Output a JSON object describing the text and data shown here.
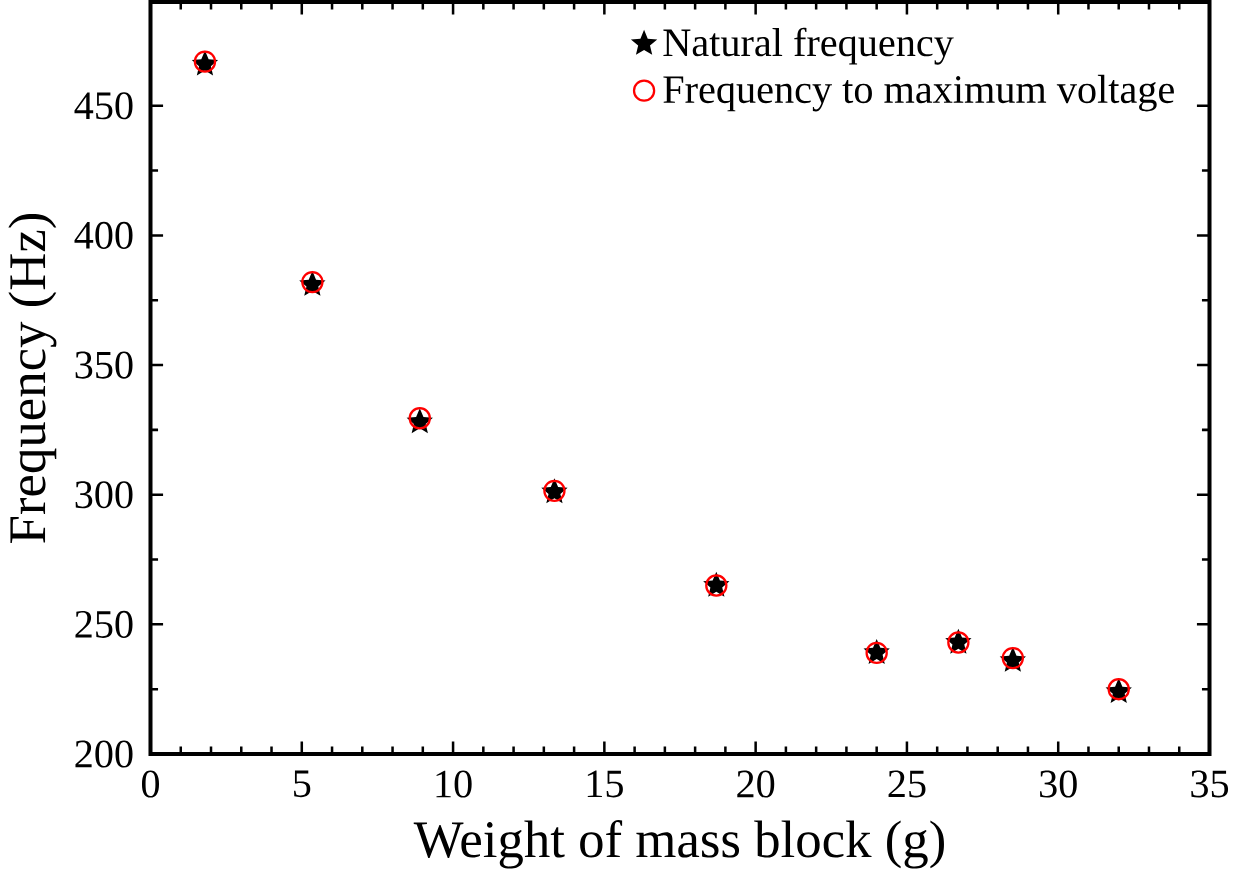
{
  "chart_data": {
    "type": "scatter",
    "xlabel": "Weight of mass block (g)",
    "ylabel": "Frequency (Hz)",
    "x": [
      1.8,
      5.35,
      8.9,
      13.35,
      18.7,
      24.0,
      26.7,
      28.5,
      32.0
    ],
    "series": [
      {
        "name": "Natural frequency",
        "color": "#000000",
        "marker": "star",
        "values": [
          466,
          381,
          328,
          301,
          265,
          239,
          243,
          236,
          224
        ]
      },
      {
        "name": "Frequency to maximum voltage",
        "color": "#ff0000",
        "marker": "circle",
        "values": [
          467,
          382,
          329.5,
          301.5,
          265,
          239,
          243,
          237,
          225
        ]
      }
    ],
    "xlim": [
      0,
      35
    ],
    "ylim": [
      200,
      490
    ],
    "xticks": [
      0,
      5,
      10,
      15,
      20,
      25,
      30,
      35
    ],
    "yticks": [
      200,
      250,
      300,
      350,
      400,
      450
    ],
    "grid": false,
    "legend": "top right"
  }
}
